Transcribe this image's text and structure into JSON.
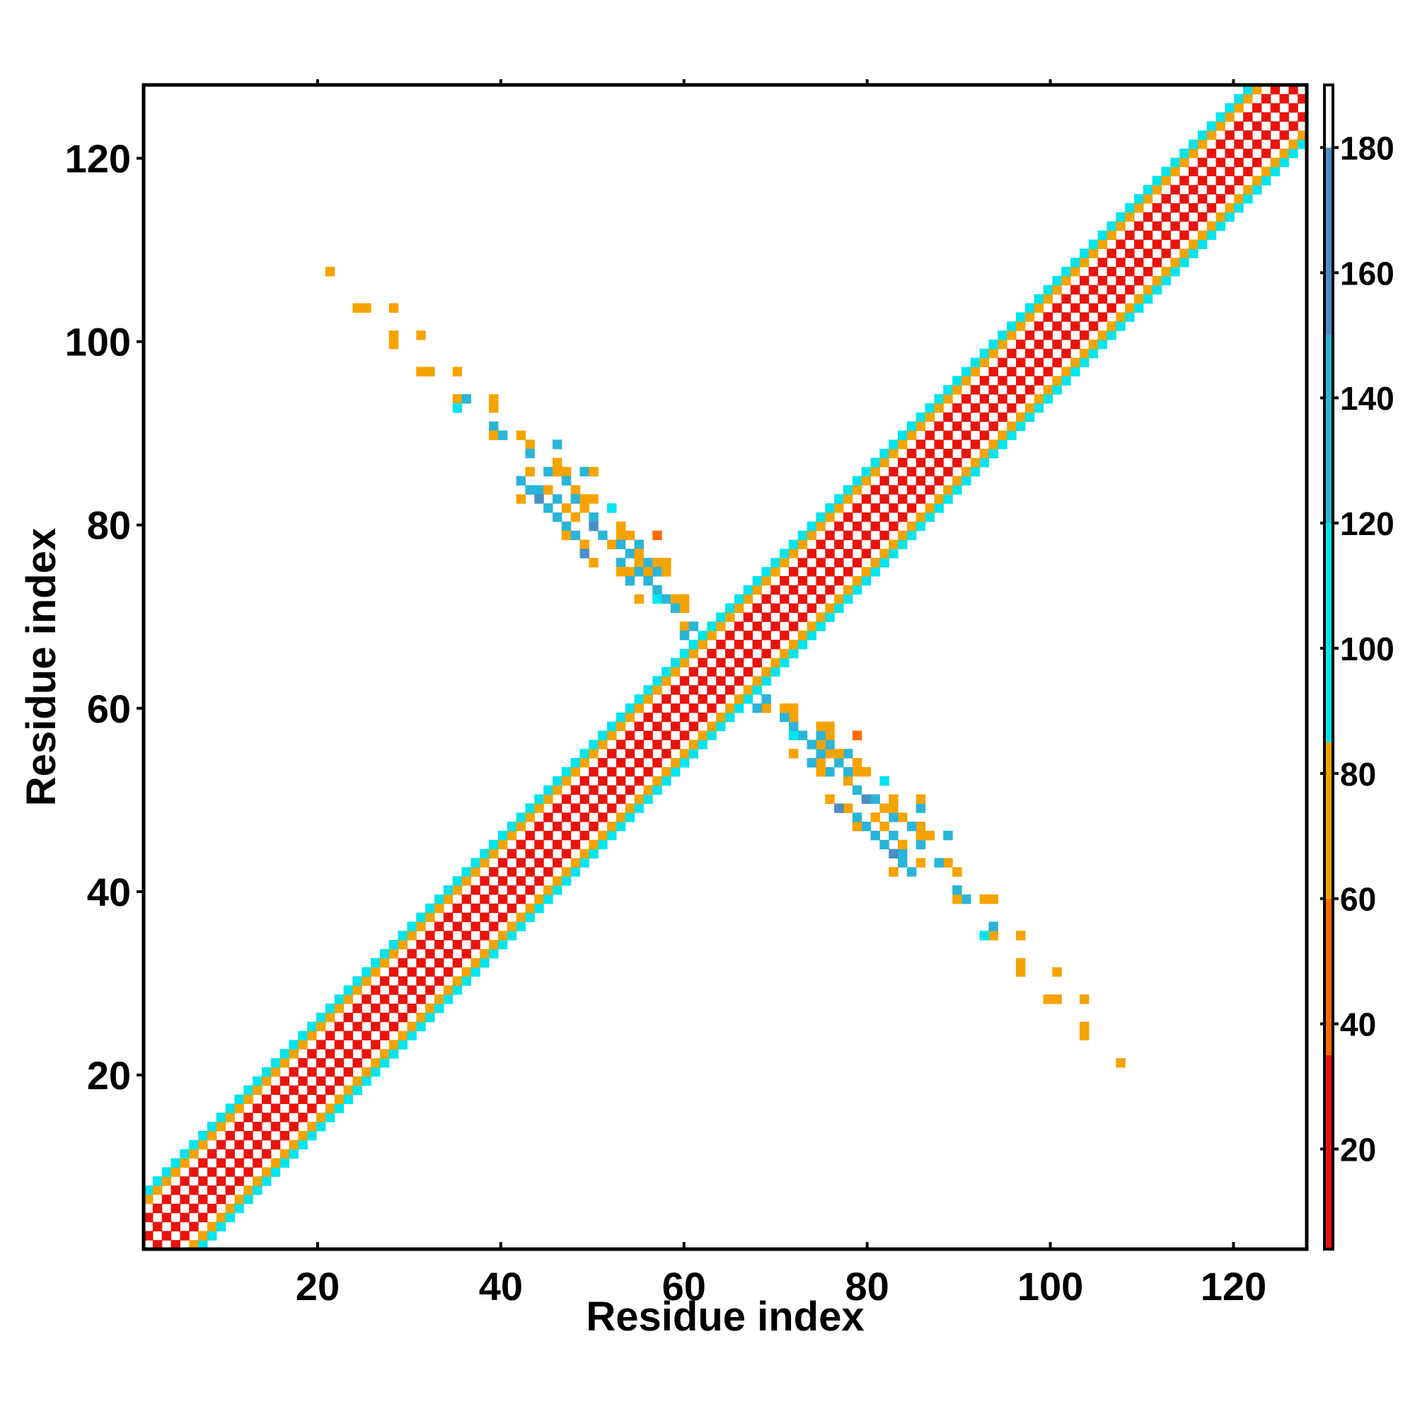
{
  "chart_data": {
    "type": "heatmap",
    "xlabel": "Residue index",
    "ylabel": "Residue index",
    "xlim": [
      1,
      128
    ],
    "ylim": [
      1,
      128
    ],
    "x_ticks": [
      20,
      40,
      60,
      80,
      100,
      120
    ],
    "y_ticks": [
      20,
      40,
      60,
      80,
      100,
      120
    ],
    "colorbar": {
      "range": [
        4,
        190
      ],
      "ticks": [
        20,
        40,
        60,
        80,
        100,
        120,
        140,
        160,
        180
      ],
      "bands": [
        {
          "from": 4,
          "to": 35,
          "color": "#e8140c"
        },
        {
          "from": 35,
          "to": 60,
          "color": "#ff6a00"
        },
        {
          "from": 60,
          "to": 85,
          "color": "#f5a300"
        },
        {
          "from": 85,
          "to": 120,
          "color": "#00e5ee"
        },
        {
          "from": 120,
          "to": 150,
          "color": "#2ab5d8"
        },
        {
          "from": 150,
          "to": 180,
          "color": "#4a90c4"
        },
        {
          "from": 180,
          "to": 190,
          "color": "#ffffff"
        }
      ]
    },
    "diagonal_band": {
      "description_free": true,
      "half_width_default": 6,
      "pattern_by_offset": {
        "0": 0,
        "1": 1,
        "2": 2,
        "3": 1,
        "4": 0,
        "5": 2,
        "6": 3
      },
      "bands_by_pattern": {
        "0": "#ffffff",
        "1": "#e8140c",
        "2": "#f5a300",
        "3": "#00e5ee"
      }
    },
    "off_diagonal_contacts": [
      {
        "x": 21,
        "y": 108,
        "v": 70
      },
      {
        "x": 24,
        "y": 104,
        "v": 70
      },
      {
        "x": 25,
        "y": 104,
        "v": 70
      },
      {
        "x": 28,
        "y": 104,
        "v": 70
      },
      {
        "x": 28,
        "y": 100,
        "v": 70
      },
      {
        "x": 28,
        "y": 101,
        "v": 70
      },
      {
        "x": 31,
        "y": 101,
        "v": 70
      },
      {
        "x": 31,
        "y": 97,
        "v": 70
      },
      {
        "x": 32,
        "y": 97,
        "v": 70
      },
      {
        "x": 35,
        "y": 97,
        "v": 70
      },
      {
        "x": 35,
        "y": 94,
        "v": 70
      },
      {
        "x": 35,
        "y": 93,
        "v": 100
      },
      {
        "x": 36,
        "y": 94,
        "v": 130
      },
      {
        "x": 39,
        "y": 94,
        "v": 70
      },
      {
        "x": 39,
        "y": 93,
        "v": 70
      },
      {
        "x": 39,
        "y": 91,
        "v": 130
      },
      {
        "x": 39,
        "y": 90,
        "v": 70
      },
      {
        "x": 40,
        "y": 90,
        "v": 130
      },
      {
        "x": 42,
        "y": 90,
        "v": 70
      },
      {
        "x": 43,
        "y": 89,
        "v": 70
      },
      {
        "x": 43,
        "y": 88,
        "v": 130
      },
      {
        "x": 46,
        "y": 89,
        "v": 130
      },
      {
        "x": 43,
        "y": 86,
        "v": 70
      },
      {
        "x": 42,
        "y": 85,
        "v": 130
      },
      {
        "x": 45,
        "y": 86,
        "v": 130
      },
      {
        "x": 46,
        "y": 87,
        "v": 70
      },
      {
        "x": 46,
        "y": 86,
        "v": 70
      },
      {
        "x": 47,
        "y": 86,
        "v": 70
      },
      {
        "x": 49,
        "y": 86,
        "v": 130
      },
      {
        "x": 50,
        "y": 86,
        "v": 70
      },
      {
        "x": 43,
        "y": 84,
        "v": 130
      },
      {
        "x": 44,
        "y": 84,
        "v": 130
      },
      {
        "x": 45,
        "y": 84,
        "v": 70
      },
      {
        "x": 47,
        "y": 85,
        "v": 130
      },
      {
        "x": 48,
        "y": 84,
        "v": 70
      },
      {
        "x": 42,
        "y": 83,
        "v": 70
      },
      {
        "x": 44,
        "y": 83,
        "v": 160
      },
      {
        "x": 46,
        "y": 83,
        "v": 130
      },
      {
        "x": 48,
        "y": 83,
        "v": 130
      },
      {
        "x": 49,
        "y": 83,
        "v": 70
      },
      {
        "x": 50,
        "y": 83,
        "v": 70
      },
      {
        "x": 45,
        "y": 82,
        "v": 130
      },
      {
        "x": 47,
        "y": 82,
        "v": 70
      },
      {
        "x": 49,
        "y": 82,
        "v": 70
      },
      {
        "x": 52,
        "y": 82,
        "v": 100
      },
      {
        "x": 46,
        "y": 81,
        "v": 130
      },
      {
        "x": 48,
        "y": 81,
        "v": 70
      },
      {
        "x": 50,
        "y": 81,
        "v": 130
      },
      {
        "x": 47,
        "y": 80,
        "v": 130
      },
      {
        "x": 50,
        "y": 80,
        "v": 160
      },
      {
        "x": 53,
        "y": 80,
        "v": 70
      },
      {
        "x": 47,
        "y": 79,
        "v": 70
      },
      {
        "x": 48,
        "y": 79,
        "v": 130
      },
      {
        "x": 51,
        "y": 79,
        "v": 130
      },
      {
        "x": 53,
        "y": 79,
        "v": 70
      },
      {
        "x": 54,
        "y": 79,
        "v": 70
      },
      {
        "x": 57,
        "y": 79,
        "v": 55
      },
      {
        "x": 49,
        "y": 78,
        "v": 70
      },
      {
        "x": 52,
        "y": 78,
        "v": 70
      },
      {
        "x": 53,
        "y": 78,
        "v": 130
      },
      {
        "x": 55,
        "y": 78,
        "v": 130
      },
      {
        "x": 49,
        "y": 77,
        "v": 160
      },
      {
        "x": 54,
        "y": 77,
        "v": 130
      },
      {
        "x": 55,
        "y": 77,
        "v": 70
      },
      {
        "x": 50,
        "y": 76,
        "v": 70
      },
      {
        "x": 53,
        "y": 76,
        "v": 130
      },
      {
        "x": 55,
        "y": 76,
        "v": 70
      },
      {
        "x": 56,
        "y": 76,
        "v": 130
      },
      {
        "x": 57,
        "y": 76,
        "v": 70
      },
      {
        "x": 58,
        "y": 76,
        "v": 70
      },
      {
        "x": 53,
        "y": 75,
        "v": 70
      },
      {
        "x": 54,
        "y": 75,
        "v": 70
      },
      {
        "x": 55,
        "y": 75,
        "v": 130
      },
      {
        "x": 56,
        "y": 75,
        "v": 70
      },
      {
        "x": 57,
        "y": 75,
        "v": 130
      },
      {
        "x": 58,
        "y": 75,
        "v": 70
      },
      {
        "x": 54,
        "y": 74,
        "v": 130
      },
      {
        "x": 56,
        "y": 74,
        "v": 130
      },
      {
        "x": 57,
        "y": 73,
        "v": 130
      },
      {
        "x": 55,
        "y": 72,
        "v": 70
      },
      {
        "x": 57,
        "y": 72,
        "v": 100
      },
      {
        "x": 58,
        "y": 72,
        "v": 130
      },
      {
        "x": 59,
        "y": 72,
        "v": 70
      },
      {
        "x": 60,
        "y": 72,
        "v": 70
      },
      {
        "x": 59,
        "y": 71,
        "v": 130
      },
      {
        "x": 60,
        "y": 71,
        "v": 70
      },
      {
        "x": 60,
        "y": 69,
        "v": 70
      },
      {
        "x": 61,
        "y": 69,
        "v": 130
      },
      {
        "x": 60,
        "y": 68,
        "v": 130
      }
    ]
  }
}
